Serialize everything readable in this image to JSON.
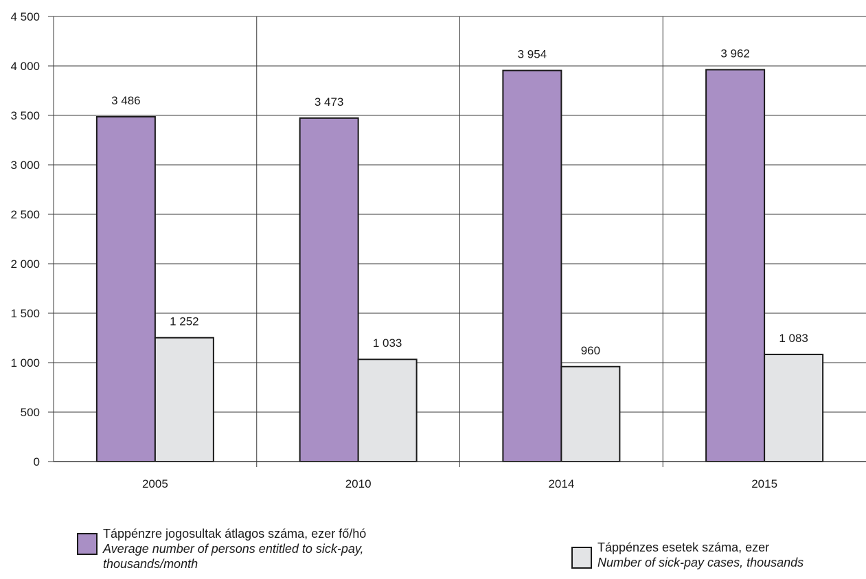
{
  "chart_data": {
    "type": "bar",
    "categories": [
      "2005",
      "2010",
      "2014",
      "2015"
    ],
    "series": [
      {
        "name": "Táppénzre jogosultak átlagos száma, ezer fő/hó / Average number of persons entitled to sick-pay, thousands/month",
        "values": [
          3486,
          3473,
          3954,
          3962
        ],
        "labels": [
          "3 486",
          "3 473",
          "3 954",
          "3 962"
        ],
        "color": "#a98fc5"
      },
      {
        "name": "Táppénzes esetek száma, ezer / Number of sick-pay cases, thousands",
        "values": [
          1252,
          1033,
          960,
          1083
        ],
        "labels": [
          "1 252",
          "1 033",
          "960",
          "1 083"
        ],
        "color": "#e3e4e6"
      }
    ],
    "ylim": [
      0,
      4500
    ],
    "yticks": [
      0,
      500,
      1000,
      1500,
      2000,
      2500,
      3000,
      3500,
      4000,
      4500
    ],
    "ytick_labels": [
      "0",
      "500",
      "1 000",
      "1 500",
      "2 000",
      "2 500",
      "3 000",
      "3 500",
      "4 000",
      "4 500"
    ],
    "grid": true,
    "legend_position": "bottom",
    "title": "",
    "xlabel": "",
    "ylabel": ""
  },
  "legend": {
    "items": [
      {
        "label_hu": "Táppénzre jogosultak átlagos száma, ezer fő/hó",
        "label_en": "Average number of persons entitled to sick-pay, thousands/month",
        "color": "#a98fc5"
      },
      {
        "label_hu": "Táppénzes esetek száma, ezer",
        "label_en": "Number of sick-pay cases, thousands",
        "color": "#e3e4e6"
      }
    ]
  }
}
